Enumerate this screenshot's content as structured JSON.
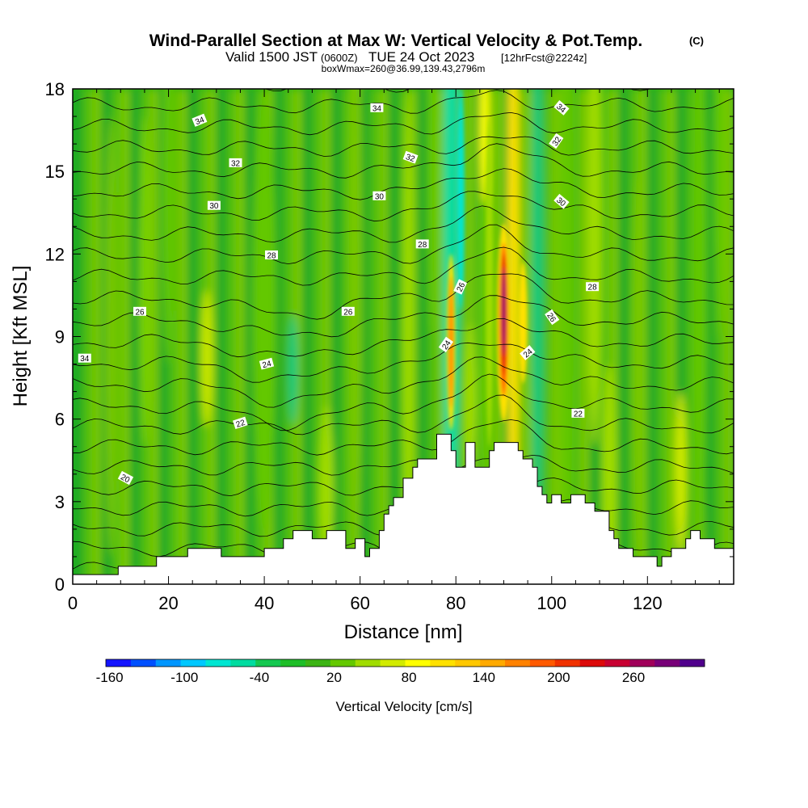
{
  "header": {
    "title": "Wind-Parallel Section at Max W: Vertical Velocity & Pot.Temp.",
    "title_mark": "(C)",
    "valid_prefix": "Valid 1500 JST",
    "valid_utc": "(0600Z)",
    "valid_date": "TUE 24 Oct 2023",
    "forecast_tag": "[12hrFcst@2224z]",
    "box_info": "boxWmax=260@36.99,139.43,2796m"
  },
  "chart_data": {
    "type": "heatmap",
    "xlabel": "Distance [nm]",
    "ylabel": "Height [Kft MSL]",
    "xlim": [
      0,
      138
    ],
    "ylim": [
      0,
      18
    ],
    "x_ticks": [
      0,
      20,
      40,
      60,
      80,
      100,
      120
    ],
    "x_tick_labels": [
      "0",
      "20",
      "40",
      "60",
      "80",
      "100",
      "120"
    ],
    "y_ticks": [
      0,
      3,
      6,
      9,
      12,
      15,
      18
    ],
    "y_tick_labels": [
      "0",
      "3",
      "6",
      "9",
      "12",
      "15",
      "18"
    ],
    "field": "vertical velocity (filled) and potential temperature (contours)",
    "terrain_profile_kft": [
      [
        0,
        0.35
      ],
      [
        9.5,
        0.35
      ],
      [
        9.5,
        0.65
      ],
      [
        17.5,
        0.65
      ],
      [
        17.5,
        1.0
      ],
      [
        24,
        1.0
      ],
      [
        24,
        1.3
      ],
      [
        31,
        1.3
      ],
      [
        31,
        1.0
      ],
      [
        40,
        1.0
      ],
      [
        40,
        1.3
      ],
      [
        44,
        1.3
      ],
      [
        44,
        1.65
      ],
      [
        46,
        1.65
      ],
      [
        46,
        1.95
      ],
      [
        50,
        1.95
      ],
      [
        50,
        1.65
      ],
      [
        53,
        1.65
      ],
      [
        53,
        1.95
      ],
      [
        57,
        1.95
      ],
      [
        57,
        1.3
      ],
      [
        59,
        1.3
      ],
      [
        59,
        1.65
      ],
      [
        61,
        1.65
      ],
      [
        61,
        1.0
      ],
      [
        62,
        1.0
      ],
      [
        62,
        1.3
      ],
      [
        64,
        1.3
      ],
      [
        64,
        1.95
      ],
      [
        65,
        1.95
      ],
      [
        65,
        2.55
      ],
      [
        66,
        2.55
      ],
      [
        66,
        2.85
      ],
      [
        67,
        2.85
      ],
      [
        67,
        3.15
      ],
      [
        69,
        3.15
      ],
      [
        69,
        3.85
      ],
      [
        71,
        3.85
      ],
      [
        71,
        4.25
      ],
      [
        72,
        4.25
      ],
      [
        72,
        4.55
      ],
      [
        76,
        4.55
      ],
      [
        76,
        5.45
      ],
      [
        79,
        5.45
      ],
      [
        79,
        4.85
      ],
      [
        80,
        4.85
      ],
      [
        80,
        4.25
      ],
      [
        82,
        4.25
      ],
      [
        82,
        5.15
      ],
      [
        84,
        5.15
      ],
      [
        84,
        4.25
      ],
      [
        87,
        4.25
      ],
      [
        87,
        4.85
      ],
      [
        88,
        4.85
      ],
      [
        88,
        5.15
      ],
      [
        93,
        5.15
      ],
      [
        93,
        4.85
      ],
      [
        94,
        4.85
      ],
      [
        94,
        4.55
      ],
      [
        96,
        4.55
      ],
      [
        96,
        4.25
      ],
      [
        97,
        4.25
      ],
      [
        97,
        3.55
      ],
      [
        98,
        3.55
      ],
      [
        98,
        3.25
      ],
      [
        99,
        3.25
      ],
      [
        99,
        2.95
      ],
      [
        100,
        2.95
      ],
      [
        100,
        3.25
      ],
      [
        102,
        3.25
      ],
      [
        102,
        2.95
      ],
      [
        104,
        2.95
      ],
      [
        104,
        3.25
      ],
      [
        107,
        3.25
      ],
      [
        107,
        2.95
      ],
      [
        109,
        2.95
      ],
      [
        109,
        2.65
      ],
      [
        112,
        2.65
      ],
      [
        112,
        1.95
      ],
      [
        113,
        1.95
      ],
      [
        113,
        1.65
      ],
      [
        114,
        1.65
      ],
      [
        114,
        1.3
      ],
      [
        117,
        1.3
      ],
      [
        117,
        1.0
      ],
      [
        122,
        1.0
      ],
      [
        122,
        0.65
      ],
      [
        123,
        0.65
      ],
      [
        123,
        1.0
      ],
      [
        125,
        1.0
      ],
      [
        125,
        1.3
      ],
      [
        128,
        1.3
      ],
      [
        128,
        1.65
      ],
      [
        129,
        1.65
      ],
      [
        129,
        1.95
      ],
      [
        131,
        1.95
      ],
      [
        131,
        1.65
      ],
      [
        134,
        1.65
      ],
      [
        134,
        1.3
      ],
      [
        138,
        1.3
      ]
    ],
    "w_max_cm_s": 260,
    "w_max_location_nm": 90,
    "theta_contour_labels": [
      {
        "text": "34",
        "x": 2.5,
        "y": 8.2,
        "rot": 0
      },
      {
        "text": "20",
        "x": 11,
        "y": 3.85,
        "rot": 28
      },
      {
        "text": "26",
        "x": 14,
        "y": 9.9,
        "rot": 0
      },
      {
        "text": "34",
        "x": 26.5,
        "y": 16.85,
        "rot": -22
      },
      {
        "text": "30",
        "x": 29.5,
        "y": 13.75,
        "rot": 0
      },
      {
        "text": "22",
        "x": 35,
        "y": 5.85,
        "rot": -18
      },
      {
        "text": "32",
        "x": 34,
        "y": 15.3,
        "rot": 0
      },
      {
        "text": "24",
        "x": 40.5,
        "y": 8.0,
        "rot": -15
      },
      {
        "text": "28",
        "x": 41.5,
        "y": 11.95,
        "rot": 0
      },
      {
        "text": "26",
        "x": 57.5,
        "y": 9.9,
        "rot": 0
      },
      {
        "text": "34",
        "x": 63.5,
        "y": 17.3,
        "rot": 0
      },
      {
        "text": "30",
        "x": 64,
        "y": 14.1,
        "rot": 0
      },
      {
        "text": "32",
        "x": 70.5,
        "y": 15.5,
        "rot": 20
      },
      {
        "text": "28",
        "x": 73,
        "y": 12.35,
        "rot": 0
      },
      {
        "text": "26",
        "x": 81,
        "y": 10.8,
        "rot": -65
      },
      {
        "text": "24",
        "x": 78,
        "y": 8.7,
        "rot": -55
      },
      {
        "text": "24",
        "x": 95,
        "y": 8.4,
        "rot": -40
      },
      {
        "text": "26",
        "x": 100,
        "y": 9.7,
        "rot": 55
      },
      {
        "text": "34",
        "x": 102,
        "y": 17.3,
        "rot": 40
      },
      {
        "text": "32",
        "x": 101,
        "y": 16.1,
        "rot": -55
      },
      {
        "text": "30",
        "x": 102,
        "y": 13.9,
        "rot": 40
      },
      {
        "text": "22",
        "x": 105.5,
        "y": 6.2,
        "rot": 0
      },
      {
        "text": "28",
        "x": 108.5,
        "y": 10.8,
        "rot": 0
      }
    ]
  },
  "colorbar": {
    "title": "Vertical Velocity [cm/s]",
    "colors": [
      "#1414ff",
      "#0050ff",
      "#0096ff",
      "#00c8ff",
      "#00e6d2",
      "#00dca0",
      "#14c850",
      "#1ebe28",
      "#3cb414",
      "#64c800",
      "#a0dc00",
      "#d2eb00",
      "#ffff00",
      "#ffe100",
      "#ffc800",
      "#ffaa00",
      "#ff8200",
      "#ff5a00",
      "#f03200",
      "#dc0a0a",
      "#c80032",
      "#a0005a",
      "#780078",
      "#50008c"
    ],
    "ticks": [
      "-160",
      "-100",
      "-40",
      "20",
      "80",
      "140",
      "200",
      "260"
    ],
    "tick_positions": [
      0,
      2,
      4,
      6,
      8,
      10,
      12,
      14
    ]
  }
}
